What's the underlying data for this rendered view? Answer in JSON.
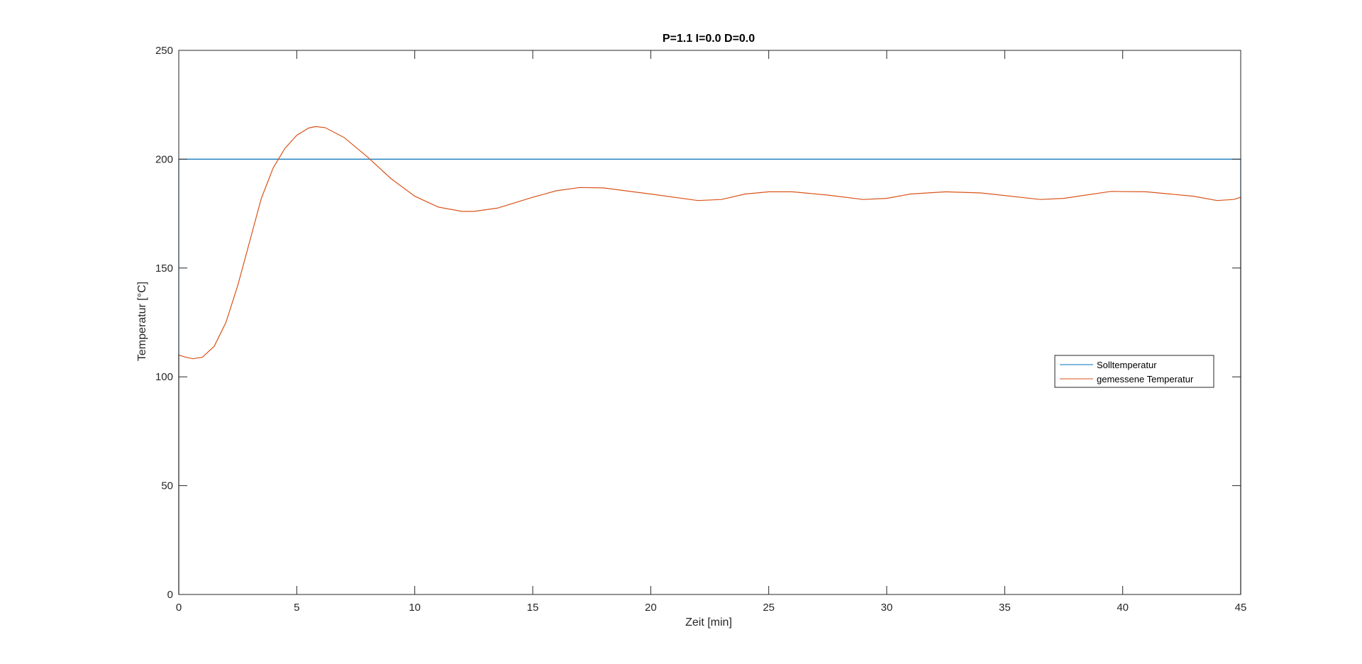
{
  "chart_data": {
    "type": "line",
    "title": "P=1.1 I=0.0 D=0.0",
    "xlabel": "Zeit [min]",
    "ylabel": "Temperatur [°C]",
    "xlim": [
      0,
      45
    ],
    "ylim": [
      0,
      250
    ],
    "xticks": [
      0,
      5,
      10,
      15,
      20,
      25,
      30,
      35,
      40,
      45
    ],
    "yticks": [
      0,
      50,
      100,
      150,
      200,
      250
    ],
    "grid": false,
    "legend_position": "right",
    "series": [
      {
        "name": "Solltemperatur",
        "color": "#0072BD",
        "points": [
          [
            0,
            0
          ],
          [
            0,
            200
          ],
          [
            45,
            200
          ],
          [
            45,
            0
          ]
        ]
      },
      {
        "name": "gemessene Temperatur",
        "color": "#D95319",
        "points": [
          [
            0,
            0
          ],
          [
            0,
            110
          ],
          [
            0.3,
            109
          ],
          [
            0.6,
            108.3
          ],
          [
            1.0,
            109
          ],
          [
            1.5,
            114
          ],
          [
            2.0,
            125
          ],
          [
            2.5,
            142
          ],
          [
            3.0,
            162
          ],
          [
            3.5,
            182
          ],
          [
            4.0,
            196
          ],
          [
            4.5,
            205
          ],
          [
            5.0,
            211
          ],
          [
            5.5,
            214.3
          ],
          [
            5.8,
            215
          ],
          [
            6.2,
            214.5
          ],
          [
            7.0,
            210
          ],
          [
            8.0,
            201
          ],
          [
            9.0,
            191
          ],
          [
            10.0,
            183
          ],
          [
            11.0,
            178
          ],
          [
            12.0,
            176
          ],
          [
            12.5,
            176
          ],
          [
            13.5,
            177.5
          ],
          [
            15.0,
            182.5
          ],
          [
            16.0,
            185.5
          ],
          [
            17.0,
            187
          ],
          [
            18.0,
            186.8
          ],
          [
            20.0,
            184
          ],
          [
            22.0,
            181
          ],
          [
            23.0,
            181.5
          ],
          [
            24.0,
            184
          ],
          [
            25.0,
            185
          ],
          [
            26.0,
            185
          ],
          [
            27.5,
            183.5
          ],
          [
            29.0,
            181.5
          ],
          [
            30.0,
            182
          ],
          [
            31.0,
            184
          ],
          [
            32.5,
            185
          ],
          [
            34.0,
            184.5
          ],
          [
            36.5,
            181.5
          ],
          [
            37.5,
            182
          ],
          [
            39.5,
            185.2
          ],
          [
            41.0,
            185
          ],
          [
            43.0,
            183
          ],
          [
            44.0,
            181
          ],
          [
            44.7,
            181.5
          ],
          [
            45.0,
            182.5
          ],
          [
            45.0,
            0
          ]
        ]
      }
    ]
  }
}
